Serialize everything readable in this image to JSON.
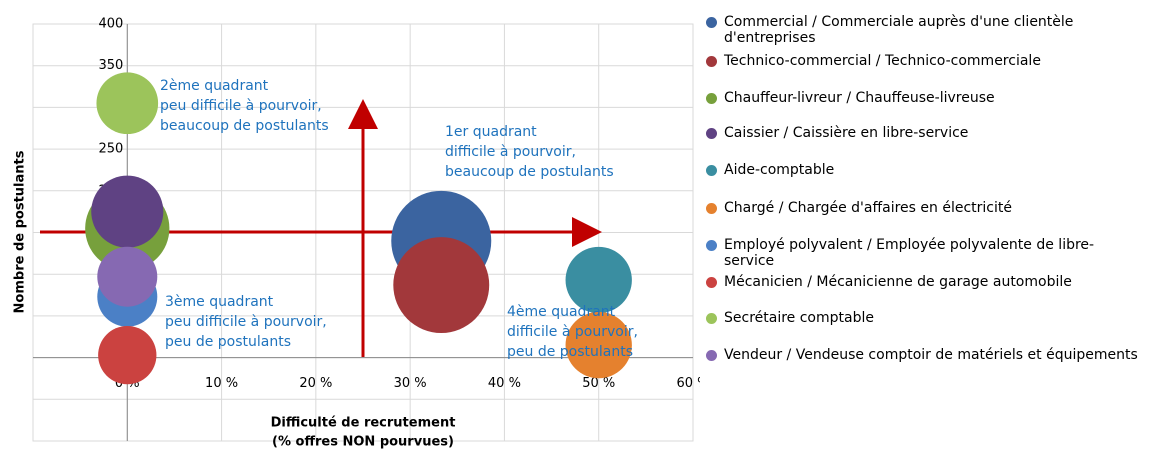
{
  "chart_data": {
    "type": "bubble",
    "xlabel": [
      "Difficulté de recrutement",
      "(% offres NON pourvues)"
    ],
    "ylabel": "Nombre de postulants",
    "xlim": [
      -10,
      60
    ],
    "xticks": [
      {
        "value": 0,
        "label": "0 %"
      },
      {
        "value": 10,
        "label": "10 %"
      },
      {
        "value": 20,
        "label": "20 %"
      },
      {
        "value": 30,
        "label": "30 %"
      },
      {
        "value": 40,
        "label": "40 %"
      },
      {
        "value": 50,
        "label": "50 %"
      },
      {
        "value": 60,
        "label": "60 %"
      }
    ],
    "ylim": [
      -100,
      400
    ],
    "yticks": [
      0,
      50,
      100,
      150,
      200,
      250,
      300,
      350,
      400
    ],
    "grid": true,
    "legend": "right",
    "annotations": [
      [
        "2ème quadrant",
        "peu difficile à pourvoir,",
        "beaucoup de postulants"
      ],
      [
        "1er quadrant",
        "difficile à pourvoir,",
        "beaucoup de postulants"
      ],
      [
        "3ème quadrant",
        "peu difficile à pourvoir,",
        "peu de postulants"
      ],
      [
        "4ème quadrant",
        "difficile à pourvoir,",
        "peu de postulants"
      ]
    ],
    "series": [
      {
        "name": "Commercial / Commerciale auprès d'une clientèle d'entreprises",
        "color": "#3b64a0",
        "x": [
          33.3
        ],
        "values": [
          140
        ],
        "sizes": [
          100
        ]
      },
      {
        "name": "Technico-commercial / Technico-commerciale",
        "color": "#a2383b",
        "x": [
          33.3
        ],
        "values": [
          87
        ],
        "sizes": [
          92
        ]
      },
      {
        "name": "Chauffeur-livreur / Chauffeuse-livreuse",
        "color": "#77a03c",
        "x": [
          0
        ],
        "values": [
          155
        ],
        "sizes": [
          71
        ]
      },
      {
        "name": "Caissier / Caissière en libre-service",
        "color": "#5f4283",
        "x": [
          0
        ],
        "values": [
          175
        ],
        "sizes": [
          52
        ]
      },
      {
        "name": "Aide-comptable",
        "color": "#3a8ea1",
        "x": [
          50
        ],
        "values": [
          93
        ],
        "sizes": [
          44
        ]
      },
      {
        "name": "Chargé / Chargée d'affaires en électricité",
        "color": "#e5812e",
        "x": [
          50
        ],
        "values": [
          15
        ],
        "sizes": [
          44
        ]
      },
      {
        "name": "Employé polyvalent / Employée polyvalente de libre-service",
        "color": "#4b80c6",
        "x": [
          0
        ],
        "values": [
          73
        ],
        "sizes": [
          36
        ]
      },
      {
        "name": "Mécanicien / Mécanicienne de garage automobile",
        "color": "#cb4240",
        "x": [
          0
        ],
        "values": [
          3
        ],
        "sizes": [
          34
        ]
      },
      {
        "name": "Secrétaire comptable",
        "color": "#9cc45b",
        "x": [
          0
        ],
        "values": [
          305
        ],
        "sizes": [
          38
        ]
      },
      {
        "name": "Vendeur / Vendeuse comptoir de matériels et équipements",
        "color": "#8669b2",
        "x": [
          0
        ],
        "values": [
          97
        ],
        "sizes": [
          36
        ]
      }
    ]
  }
}
